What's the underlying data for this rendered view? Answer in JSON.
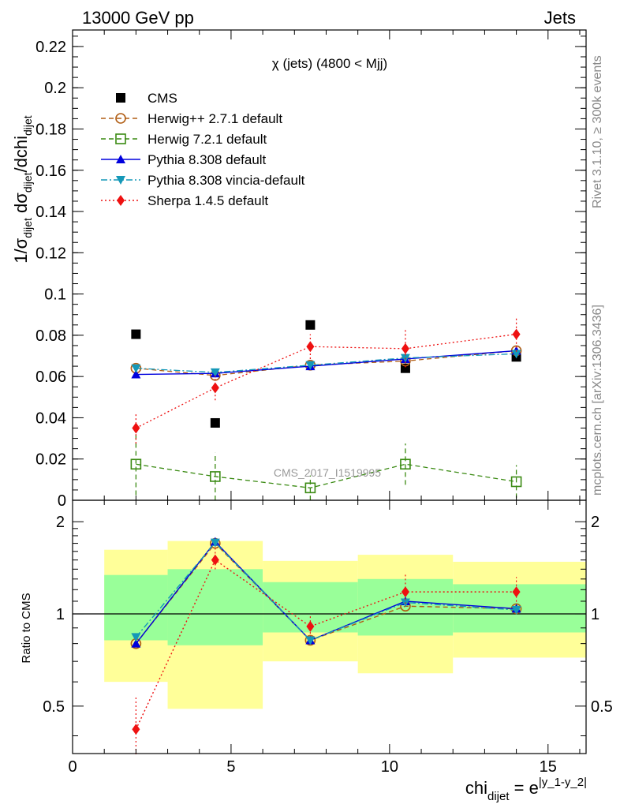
{
  "header": {
    "left": "13000 GeV pp",
    "right": "Jets"
  },
  "side": {
    "rivet": "Rivet 3.1.10, ≥ 300k events",
    "mcplots": "mcplots.cern.ch [arXiv:1306.3436]"
  },
  "watermark": "CMS_2017_I1519995",
  "colors": {
    "CMS": "#000000",
    "Herwig++ 2.7.1 default": "#b15d13",
    "Herwig 7.2.1 default": "#3a8a12",
    "Pythia 8.308 default": "#0000dd",
    "Pythia 8.308 vincia-default": "#1598b8",
    "Sherpa 1.4.5 default": "#ee1111",
    "band_inner": "#99ff99",
    "band_outer": "#ffff99"
  },
  "chart_data": [
    {
      "type": "scatter",
      "title": "χ (jets) (4800 < Mjj)",
      "ylabel": "1/σdijet dσdijet/dchidijet",
      "xlim": [
        0,
        16.2
      ],
      "ylim": [
        0,
        0.228
      ],
      "x": [
        2,
        4.5,
        7.5,
        10.5,
        14
      ],
      "x_ticks": [
        "0",
        "5",
        "10",
        "15"
      ],
      "y_ticks": [
        "0",
        "0.02",
        "0.04",
        "0.06",
        "0.08",
        "0.1",
        "0.12",
        "0.14",
        "0.16",
        "0.18",
        "0.2",
        "0.22"
      ],
      "legend_position": "top-left",
      "series": [
        {
          "name": "CMS",
          "marker": "square",
          "values": [
            0.0805,
            0.0375,
            0.085,
            0.064,
            0.0695
          ]
        },
        {
          "name": "Herwig++ 2.7.1 default",
          "marker": "open-circle",
          "line": "dashed",
          "values": [
            0.064,
            0.0605,
            0.0655,
            0.0675,
            0.0725
          ],
          "err": [
            0.001,
            0.001,
            0.001,
            0.001,
            0.001
          ]
        },
        {
          "name": "Herwig 7.2.1 default",
          "marker": "open-square",
          "line": "dashed",
          "values": [
            0.0175,
            0.0115,
            0.006,
            0.0175,
            0.009
          ],
          "err": [
            0.015,
            0.0115,
            0.006,
            0.01,
            0.008
          ]
        },
        {
          "name": "Pythia 8.308 default",
          "marker": "triangle-up",
          "line": "solid",
          "values": [
            0.061,
            0.0615,
            0.065,
            0.0685,
            0.0725
          ],
          "err": [
            0.001,
            0.001,
            0.001,
            0.001,
            0.001
          ]
        },
        {
          "name": "Pythia 8.308 vincia-default",
          "marker": "triangle-down",
          "line": "dashdot",
          "values": [
            0.064,
            0.062,
            0.0655,
            0.069,
            0.071
          ],
          "err": [
            0.001,
            0.001,
            0.001,
            0.001,
            0.001
          ]
        },
        {
          "name": "Sherpa 1.4.5 default",
          "marker": "diamond",
          "line": "dotted",
          "values": [
            0.035,
            0.0545,
            0.0745,
            0.0735,
            0.0805
          ],
          "err": [
            0.0075,
            0.006,
            0.006,
            0.009,
            0.0085
          ]
        }
      ]
    },
    {
      "type": "scatter",
      "ylabel": "Ratio to CMS",
      "xlabel": "chidijet = e|y_1-y_2|",
      "xlim": [
        0,
        16.2
      ],
      "ylim": [
        0.35,
        2.35
      ],
      "x": [
        2,
        4.5,
        7.5,
        10.5,
        14
      ],
      "x_ticks": [
        "0",
        "5",
        "10",
        "15"
      ],
      "y_ticks": [
        "0.5",
        "1",
        "2"
      ],
      "bands": {
        "edges": [
          1,
          3,
          6,
          9,
          12,
          16.2
        ],
        "inner_low": [
          0.82,
          0.79,
          0.87,
          0.85,
          0.87
        ],
        "inner_high": [
          1.34,
          1.4,
          1.27,
          1.3,
          1.25
        ],
        "outer_low": [
          0.6,
          0.49,
          0.7,
          0.64,
          0.72
        ],
        "outer_high": [
          1.62,
          1.73,
          1.49,
          1.56,
          1.48
        ]
      },
      "series": [
        {
          "name": "Herwig++ 2.7.1 default",
          "marker": "open-circle",
          "line": "dashed",
          "values": [
            0.8,
            1.7,
            0.82,
            1.06,
            1.04
          ]
        },
        {
          "name": "Pythia 8.308 default",
          "marker": "triangle-up",
          "line": "solid",
          "values": [
            0.8,
            1.72,
            0.82,
            1.1,
            1.04
          ]
        },
        {
          "name": "Pythia 8.308 vincia-default",
          "marker": "triangle-down",
          "line": "dashdot",
          "values": [
            0.84,
            1.71,
            0.82,
            1.09,
            1.03
          ]
        },
        {
          "name": "Sherpa 1.4.5 default",
          "marker": "diamond",
          "line": "dotted",
          "values": [
            0.42,
            1.5,
            0.91,
            1.18,
            1.18
          ],
          "err": [
            0.12,
            0.17,
            0.08,
            0.17,
            0.14
          ]
        }
      ]
    }
  ]
}
